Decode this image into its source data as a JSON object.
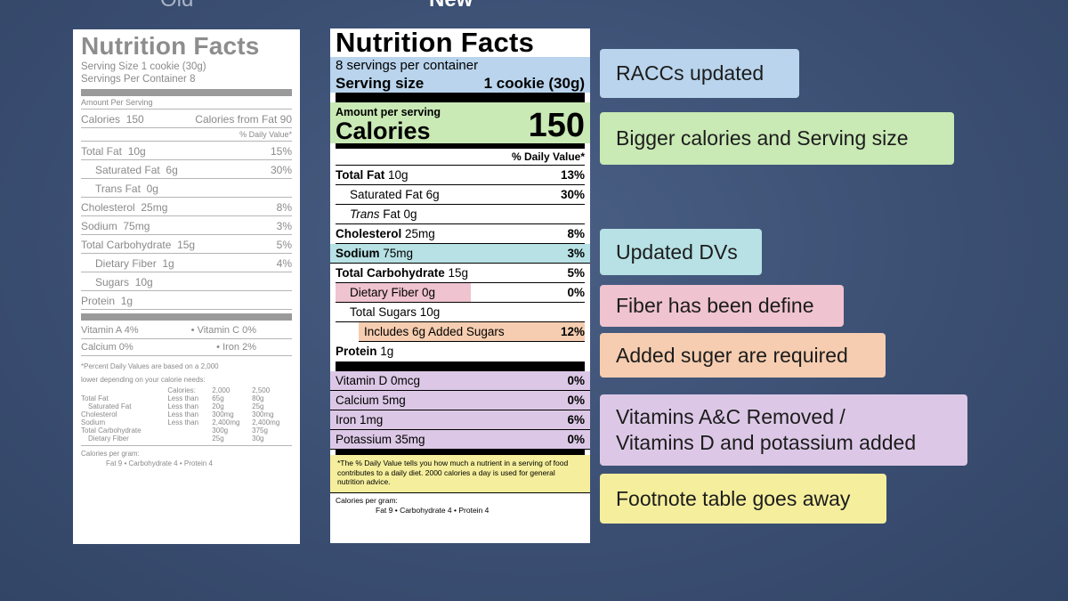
{
  "headers": {
    "old": "Old",
    "new": "New"
  },
  "old_label": {
    "title": "Nutrition Facts",
    "serving_size": "Serving Size 1 cookie (30g)",
    "servings_per_container": "Servings Per Container 8",
    "amount_per_serving": "Amount Per Serving",
    "calories": "Calories",
    "calories_value": "150",
    "calories_from_fat": "Calories from Fat 90",
    "daily_value_header": "% Daily Value*",
    "rows": [
      {
        "name": "Total Fat",
        "amount": "10g",
        "pct": "15%",
        "indent": false
      },
      {
        "name": "Saturated Fat",
        "amount": "6g",
        "pct": "30%",
        "indent": true
      },
      {
        "name": "Trans Fat",
        "amount": "0g",
        "pct": "",
        "indent": true
      },
      {
        "name": "Cholesterol",
        "amount": "25mg",
        "pct": "8%",
        "indent": false
      },
      {
        "name": "Sodium",
        "amount": "75mg",
        "pct": "3%",
        "indent": false
      },
      {
        "name": "Total Carbohydrate",
        "amount": "15g",
        "pct": "5%",
        "indent": false
      },
      {
        "name": "Dietary Fiber",
        "amount": "1g",
        "pct": "4%",
        "indent": true
      },
      {
        "name": "Sugars",
        "amount": "10g",
        "pct": "",
        "indent": true
      },
      {
        "name": "Protein",
        "amount": "1g",
        "pct": "",
        "indent": false
      }
    ],
    "vitamins": [
      {
        "left": "Vitamin A 4%",
        "right": "• Vitamin C 0%"
      },
      {
        "left": "Calcium 0%",
        "right": "• Iron 2%"
      }
    ],
    "footnote_1": "*Percent Daily Values are based on a 2,000",
    "footnote_2": "lower depending on your calorie needs:",
    "table_header": [
      "",
      "Calories:",
      "2,000",
      "2,500"
    ],
    "table_rows": [
      [
        "Total Fat",
        "Less than",
        "65g",
        "80g"
      ],
      [
        "Saturated Fat",
        "Less than",
        "20g",
        "25g"
      ],
      [
        "Cholesterol",
        "Less than",
        "300mg",
        "300mg"
      ],
      [
        "Sodium",
        "Less than",
        "2,400mg",
        "2,400mg"
      ],
      [
        "Total Carbohydrate",
        "",
        "300g",
        "375g"
      ],
      [
        "Dietary Fiber",
        "",
        "25g",
        "30g"
      ]
    ],
    "calories_per_gram": "Calories per gram:",
    "calories_per_gram_values": "Fat 9   •   Carbohydrate 4   •   Protein 4"
  },
  "new_label": {
    "title": "Nutrition Facts",
    "servings_per_container": "8 servings per container",
    "serving_size_label": "Serving size",
    "serving_size_value": "1 cookie (30g)",
    "amount_per_serving": "Amount per serving",
    "calories_label": "Calories",
    "calories_value": "150",
    "daily_value_header": "% Daily Value*",
    "total_fat": {
      "name": "Total Fat",
      "amount": "10g",
      "pct": "13%"
    },
    "saturated_fat": {
      "name": "Saturated Fat",
      "amount": "6g",
      "pct": "30%"
    },
    "trans_fat": {
      "name": "Trans",
      "suffix": "Fat 0g"
    },
    "cholesterol": {
      "name": "Cholesterol",
      "amount": "25mg",
      "pct": "8%"
    },
    "sodium": {
      "name": "Sodium",
      "amount": "75mg",
      "pct": "3%"
    },
    "total_carb": {
      "name": "Total Carbohydrate",
      "amount": "15g",
      "pct": "5%"
    },
    "dietary_fiber": {
      "name": "Dietary Fiber 0g",
      "pct": "0%"
    },
    "total_sugars": {
      "name": "Total Sugars 10g"
    },
    "added_sugars": {
      "name": "Includes 6g Added Sugars",
      "pct": "12%"
    },
    "protein": {
      "name": "Protein",
      "amount": "1g"
    },
    "vitamins": [
      {
        "name": "Vitamin D 0mcg",
        "pct": "0%"
      },
      {
        "name": "Calcium 5mg",
        "pct": "0%"
      },
      {
        "name": "Iron 1mg",
        "pct": "6%"
      },
      {
        "name": "Potassium 35mg",
        "pct": "0%"
      }
    ],
    "footnote": "*The % Daily Value tells you how much a nutrient in a serving of food contributes to a daily diet. 2000 calories a day is used for general nutrition advice.",
    "calories_per_gram": "Calories per gram:",
    "calories_per_gram_values": "Fat 9   •   Carbohydrate 4   •   Protein 4"
  },
  "callouts": {
    "raccs": "RACCs updated",
    "bigger_calories": "Bigger calories and Serving size",
    "updated_dvs": "Updated DVs",
    "fiber": "Fiber has been define",
    "added_sugar": "Added suger are required",
    "vitamins_line1": "Vitamins A&C Removed /",
    "vitamins_line2": "Vitamins D and potassium added",
    "footnote": "Footnote table goes away"
  },
  "colors": {
    "background": "#3b4f73",
    "blue": "#b9d4ec",
    "green": "#c9e9b5",
    "teal": "#b7e1e4",
    "pink": "#efc3cf",
    "orange": "#f6cdb0",
    "purple": "#dcc8e6",
    "yellow": "#f5ee9c"
  }
}
